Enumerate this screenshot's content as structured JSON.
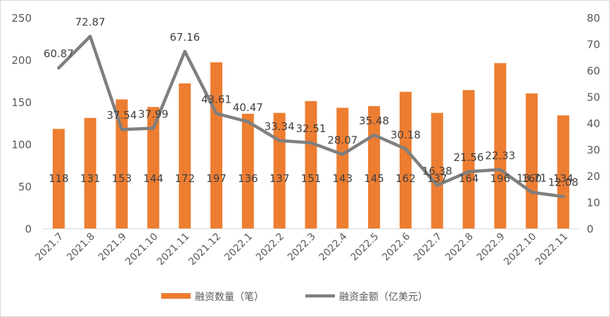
{
  "chart_data": {
    "type": "bar",
    "title": "",
    "categories": [
      "2021.7",
      "2021.8",
      "2021.9",
      "2021.10",
      "2021.11",
      "2021.12",
      "2022.1",
      "2022.2",
      "2022.3",
      "2022.4",
      "2022.5",
      "2022.6",
      "2022.7",
      "2022.8",
      "2022.9",
      "2022.10",
      "2022.11"
    ],
    "series": [
      {
        "name": "融资数量（笔）",
        "type": "bar",
        "axis": "left",
        "color": "#ED7D31",
        "values": [
          118,
          131,
          153,
          144,
          172,
          197,
          136,
          137,
          151,
          143,
          145,
          162,
          137,
          164,
          196,
          160,
          134
        ]
      },
      {
        "name": "融资金额（亿美元）",
        "type": "line",
        "axis": "right",
        "color": "#7F7F7F",
        "values": [
          60.87,
          72.87,
          37.54,
          37.99,
          67.16,
          43.61,
          40.47,
          33.34,
          32.51,
          28.07,
          35.48,
          30.18,
          16.38,
          21.56,
          22.33,
          13.71,
          12.08
        ]
      }
    ],
    "y_left": {
      "ylim": [
        0,
        250
      ],
      "ticks": [
        0,
        50,
        100,
        150,
        200,
        250
      ]
    },
    "y_right": {
      "ylim": [
        0,
        80
      ],
      "ticks": [
        0,
        10,
        20,
        30,
        40,
        50,
        60,
        70,
        80
      ]
    },
    "grid": false,
    "legend": "bottom"
  }
}
